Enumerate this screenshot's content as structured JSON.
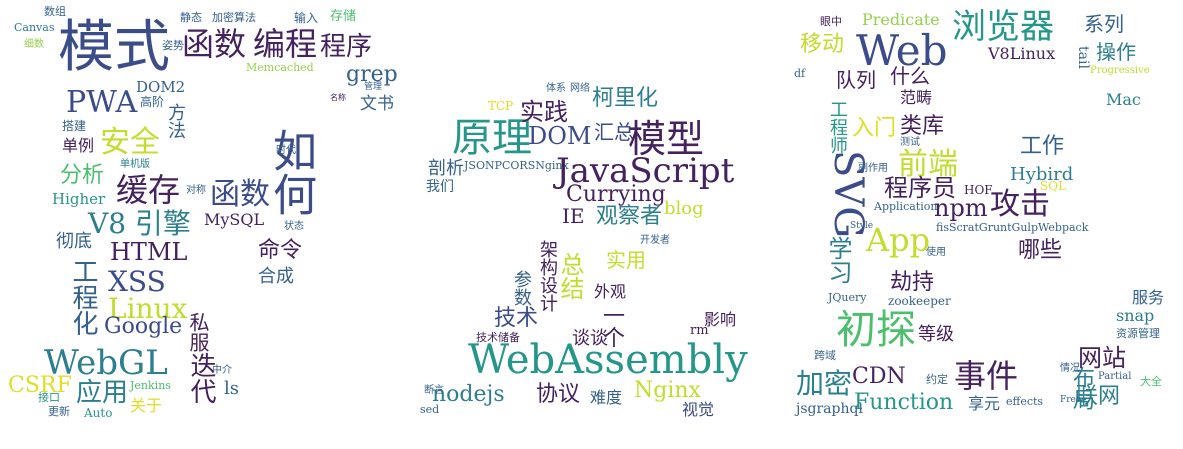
{
  "palette": {
    "dark_purple": "#45215f",
    "indigo": "#3b4c8a",
    "slate_blue": "#35628d",
    "teal_blue": "#2b7f8e",
    "teal": "#25978a",
    "green": "#4cbf6d",
    "lime": "#93d24a",
    "yellow_green": "#c4dc2d",
    "yellow": "#e0de22"
  },
  "word_cloud": {
    "words": [
      {
        "text": "模式",
        "color": "#3b4c8a"
      },
      {
        "text": "函数",
        "color": "#45215f"
      },
      {
        "text": "编程",
        "color": "#45215f"
      },
      {
        "text": "程序",
        "color": "#45215f"
      },
      {
        "text": "grep",
        "color": "#35628d"
      },
      {
        "text": "PWA",
        "color": "#3b4c8a"
      },
      {
        "text": "DOM2",
        "color": "#35628d"
      },
      {
        "text": "安全",
        "color": "#c4dc2d"
      },
      {
        "text": "方法",
        "color": "#35628d"
      },
      {
        "text": "文书",
        "color": "#35628d"
      },
      {
        "text": "缓存",
        "color": "#45215f"
      },
      {
        "text": "分析",
        "color": "#4cbf6d"
      },
      {
        "text": "Higher",
        "color": "#25978a"
      },
      {
        "text": "函数",
        "color": "#3b4c8a"
      },
      {
        "text": "如何",
        "color": "#3b4c8a"
      },
      {
        "text": "V8 引擎",
        "color": "#2b7f8e"
      },
      {
        "text": "MySQL",
        "color": "#45215f"
      },
      {
        "text": "HTML",
        "color": "#45215f"
      },
      {
        "text": "彻底",
        "color": "#35628d"
      },
      {
        "text": "命令",
        "color": "#45215f"
      },
      {
        "text": "XSS",
        "color": "#3b4c8a"
      },
      {
        "text": "合成",
        "color": "#35628d"
      },
      {
        "text": "Linux",
        "color": "#c4dc2d"
      },
      {
        "text": "工程化",
        "color": "#35628d"
      },
      {
        "text": "Google",
        "color": "#3b4c8a"
      },
      {
        "text": "私服",
        "color": "#45215f"
      },
      {
        "text": "WebGL",
        "color": "#2b7f8e"
      },
      {
        "text": "迭代",
        "color": "#45215f"
      },
      {
        "text": "CSRF",
        "color": "#e0de22"
      },
      {
        "text": "应用",
        "color": "#2b7f8e"
      },
      {
        "text": "关于",
        "color": "#e0de22"
      },
      {
        "text": "ls",
        "color": "#35628d"
      },
      {
        "text": "Jenkins",
        "color": "#4cbf6d"
      },
      {
        "text": "Auto",
        "color": "#25978a"
      },
      {
        "text": "单例",
        "color": "#45215f"
      },
      {
        "text": "搭建",
        "color": "#35628d"
      },
      {
        "text": "存储",
        "color": "#4cbf6d"
      },
      {
        "text": "输入",
        "color": "#35628d"
      },
      {
        "text": "静态",
        "color": "#35628d"
      },
      {
        "text": "加密算法",
        "color": "#35628d"
      },
      {
        "text": "Memcached",
        "color": "#93d24a"
      },
      {
        "text": "姿势",
        "color": "#35628d"
      },
      {
        "text": "数组",
        "color": "#35628d"
      },
      {
        "text": "Canvas",
        "color": "#2b7f8e"
      },
      {
        "text": "细数",
        "color": "#93d24a"
      },
      {
        "text": "高阶",
        "color": "#35628d"
      },
      {
        "text": "单机版",
        "color": "#2b7f8e"
      },
      {
        "text": "时代",
        "color": "#35628d"
      },
      {
        "text": "对称",
        "color": "#35628d"
      },
      {
        "text": "状态",
        "color": "#35628d"
      },
      {
        "text": "中介",
        "color": "#35628d"
      },
      {
        "text": "更新",
        "color": "#35628d"
      },
      {
        "text": "接口",
        "color": "#25978a"
      },
      {
        "text": "名称",
        "color": "#45215f"
      },
      {
        "text": "管理",
        "color": "#35628d"
      },
      {
        "text": "原理",
        "color": "#25978a"
      },
      {
        "text": "实践",
        "color": "#45215f"
      },
      {
        "text": "柯里化",
        "color": "#2b7f8e"
      },
      {
        "text": "DOM",
        "color": "#3b4c8a"
      },
      {
        "text": "汇总",
        "color": "#3b4c8a"
      },
      {
        "text": "模型",
        "color": "#45215f"
      },
      {
        "text": "剖析",
        "color": "#35628d"
      },
      {
        "text": "我们",
        "color": "#35628d"
      },
      {
        "text": "JSONPCORSNginx",
        "color": "#35628d"
      },
      {
        "text": "JavaScript",
        "color": "#45215f"
      },
      {
        "text": "Currying",
        "color": "#45215f"
      },
      {
        "text": "IE",
        "color": "#45215f"
      },
      {
        "text": "观察者",
        "color": "#2b7f8e"
      },
      {
        "text": "blog",
        "color": "#c4dc2d"
      },
      {
        "text": "实用",
        "color": "#c4dc2d"
      },
      {
        "text": "总结",
        "color": "#c4dc2d"
      },
      {
        "text": "参数",
        "color": "#35628d"
      },
      {
        "text": "架构设计",
        "color": "#45215f"
      },
      {
        "text": "外观",
        "color": "#45215f"
      },
      {
        "text": "技术",
        "color": "#3b4c8a"
      },
      {
        "text": "一个",
        "color": "#45215f"
      },
      {
        "text": "谈谈",
        "color": "#45215f"
      },
      {
        "text": "影响",
        "color": "#45215f"
      },
      {
        "text": "rm",
        "color": "#45215f"
      },
      {
        "text": "WebAssembly",
        "color": "#25978a"
      },
      {
        "text": "nodejs",
        "color": "#2b7f8e"
      },
      {
        "text": "协议",
        "color": "#45215f"
      },
      {
        "text": "难度",
        "color": "#35628d"
      },
      {
        "text": "Nginx",
        "color": "#c4dc2d"
      },
      {
        "text": "视觉",
        "color": "#3b4c8a"
      },
      {
        "text": "技术储备",
        "color": "#45215f"
      },
      {
        "text": "sed",
        "color": "#35628d"
      },
      {
        "text": "断言",
        "color": "#35628d"
      },
      {
        "text": "开发者",
        "color": "#35628d"
      },
      {
        "text": "网络",
        "color": "#35628d"
      },
      {
        "text": "体系",
        "color": "#35628d"
      },
      {
        "text": "TCP",
        "color": "#e0de22"
      },
      {
        "text": "Web",
        "color": "#3b4c8a"
      },
      {
        "text": "浏览器",
        "color": "#25978a"
      },
      {
        "text": "Predicate",
        "color": "#93d24a"
      },
      {
        "text": "移动",
        "color": "#c4dc2d"
      },
      {
        "text": "系列",
        "color": "#35628d"
      },
      {
        "text": "操作",
        "color": "#2b7f8e"
      },
      {
        "text": "V8Linux",
        "color": "#45215f"
      },
      {
        "text": "tail",
        "color": "#35628d"
      },
      {
        "text": "队列",
        "color": "#45215f"
      },
      {
        "text": "什么",
        "color": "#45215f"
      },
      {
        "text": "范畴",
        "color": "#45215f"
      },
      {
        "text": "Mac",
        "color": "#2b7f8e"
      },
      {
        "text": "入门",
        "color": "#e0de22"
      },
      {
        "text": "类库",
        "color": "#45215f"
      },
      {
        "text": "工程师",
        "color": "#25978a"
      },
      {
        "text": "SVG",
        "color": "#3b4c8a"
      },
      {
        "text": "前端",
        "color": "#c4dc2d"
      },
      {
        "text": "工作",
        "color": "#35628d"
      },
      {
        "text": "程序员",
        "color": "#45215f"
      },
      {
        "text": "Hybird",
        "color": "#2b7f8e"
      },
      {
        "text": "npm",
        "color": "#45215f"
      },
      {
        "text": "攻击",
        "color": "#45215f"
      },
      {
        "text": "App",
        "color": "#c4dc2d"
      },
      {
        "text": "学习",
        "color": "#2b7f8e"
      },
      {
        "text": "fisScratGruntGulpWebpack",
        "color": "#35628d"
      },
      {
        "text": "哪些",
        "color": "#45215f"
      },
      {
        "text": "劫持",
        "color": "#45215f"
      },
      {
        "text": "zookeeper",
        "color": "#35628d"
      },
      {
        "text": "服务",
        "color": "#35628d"
      },
      {
        "text": "snap",
        "color": "#2b7f8e"
      },
      {
        "text": "初探",
        "color": "#4cbf6d"
      },
      {
        "text": "等级",
        "color": "#45215f"
      },
      {
        "text": "资源管理",
        "color": "#35628d"
      },
      {
        "text": "网站",
        "color": "#45215f"
      },
      {
        "text": "加密",
        "color": "#2b7f8e"
      },
      {
        "text": "CDN",
        "color": "#45215f"
      },
      {
        "text": "事件",
        "color": "#45215f"
      },
      {
        "text": "布局",
        "color": "#2b7f8e"
      },
      {
        "text": "Function",
        "color": "#25978a"
      },
      {
        "text": "享元",
        "color": "#35628d"
      },
      {
        "text": "联网",
        "color": "#2b7f8e"
      },
      {
        "text": "jsgraphql",
        "color": "#35628d"
      },
      {
        "text": "effects",
        "color": "#35628d"
      },
      {
        "text": "大全",
        "color": "#4cbf6d"
      },
      {
        "text": "约定",
        "color": "#35628d"
      },
      {
        "text": "HOF",
        "color": "#45215f"
      },
      {
        "text": "SQL",
        "color": "#e0de22"
      },
      {
        "text": "Application",
        "color": "#35628d"
      },
      {
        "text": "JQuery",
        "color": "#35628d"
      },
      {
        "text": "跨域",
        "color": "#35628d"
      },
      {
        "text": "Progressive",
        "color": "#c4dc2d"
      },
      {
        "text": "Partial",
        "color": "#35628d"
      },
      {
        "text": "测试",
        "color": "#35628d"
      },
      {
        "text": "副作用",
        "color": "#35628d"
      },
      {
        "text": "df",
        "color": "#35628d"
      },
      {
        "text": "眼中",
        "color": "#45215f"
      },
      {
        "text": "使用",
        "color": "#35628d"
      },
      {
        "text": "情况",
        "color": "#35628d"
      },
      {
        "text": "Style",
        "color": "#35628d"
      },
      {
        "text": "Free",
        "color": "#35628d"
      }
    ]
  }
}
